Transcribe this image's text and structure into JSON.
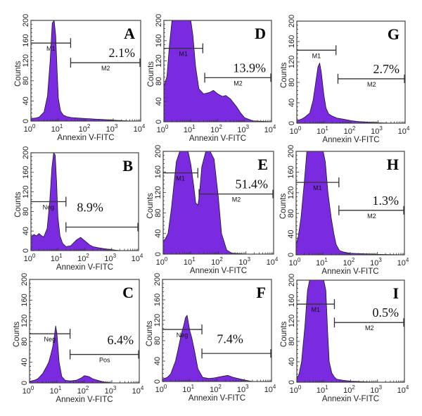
{
  "chart_data": {
    "type": "area",
    "description": "3x3 grid of flow cytometry Annexin V-FITC histograms",
    "fill_color": "#7a2be0",
    "outline_color": "#1a1a1a",
    "xscale": "log",
    "xlim": [
      1,
      10000
    ],
    "ylim": [
      0,
      200
    ],
    "xticks": [
      "10^0",
      "10^1",
      "10^2",
      "10^3",
      "10^4"
    ],
    "yticks": [
      "0",
      "40",
      "80",
      "120",
      "160",
      "200"
    ],
    "grid": false,
    "panels": [
      {
        "id": "A",
        "letter": "A",
        "percent": "2.1%",
        "xlabel": "Annexin V-FITC",
        "ylabel": "Counts",
        "markers": [
          {
            "label": "M1",
            "x_start": 1,
            "x_end": 28,
            "y": 155
          },
          {
            "label": "M2",
            "x_start": 28,
            "x_end": 10000,
            "y": 116
          }
        ],
        "histogram": {
          "x": [
            1,
            1.5,
            2,
            3,
            4,
            5,
            6,
            7,
            8,
            9,
            10,
            12,
            15,
            20,
            30,
            50,
            100,
            200,
            500,
            1000,
            2000,
            5000,
            10000
          ],
          "y": [
            5,
            6,
            8,
            18,
            50,
            120,
            195,
            200,
            170,
            100,
            45,
            20,
            12,
            9,
            7,
            6,
            5,
            4,
            3,
            2,
            1,
            0,
            0
          ]
        }
      },
      {
        "id": "B",
        "letter": "B",
        "percent": "8.9%",
        "xlabel": "Annexin V-FITC",
        "ylabel": "Counts",
        "markers": [
          {
            "label": "Neg",
            "x_start": 1,
            "x_end": 20,
            "y": 100
          },
          {
            "label": "",
            "x_start": 20,
            "x_end": 10000,
            "y": 48
          }
        ],
        "histogram": {
          "x": [
            1,
            1.3,
            1.6,
            2,
            2.5,
            3,
            4,
            5,
            6,
            7,
            8,
            9,
            10,
            12,
            15,
            20,
            30,
            50,
            70,
            100,
            150,
            200,
            300,
            500,
            1000,
            2000,
            10000
          ],
          "y": [
            28,
            33,
            30,
            35,
            30,
            28,
            45,
            100,
            170,
            200,
            195,
            140,
            70,
            30,
            15,
            8,
            10,
            22,
            27,
            20,
            12,
            8,
            6,
            4,
            2,
            0,
            0
          ]
        }
      },
      {
        "id": "C",
        "letter": "C",
        "percent": "6.4%",
        "xlabel": "Annexin V-FITC",
        "ylabel": "Counts",
        "markers": [
          {
            "label": "Neg",
            "x_start": 1,
            "x_end": 30,
            "y": 95
          },
          {
            "label": "Pos",
            "x_start": 30,
            "x_end": 10000,
            "y": 55
          }
        ],
        "histogram": {
          "x": [
            1,
            1.5,
            2,
            3,
            4,
            5,
            6,
            7,
            8,
            9,
            10,
            12,
            15,
            20,
            30,
            50,
            80,
            100,
            150,
            200,
            300,
            500,
            1000,
            10000
          ],
          "y": [
            3,
            5,
            8,
            18,
            30,
            40,
            55,
            70,
            90,
            110,
            95,
            40,
            12,
            5,
            4,
            5,
            10,
            14,
            12,
            8,
            5,
            2,
            0,
            0
          ]
        }
      },
      {
        "id": "D",
        "letter": "D",
        "percent": "13.9%",
        "xlabel": "Annexin V-FITC",
        "ylabel": "Counts",
        "markers": [
          {
            "label": "M1",
            "x_start": 1,
            "x_end": 28,
            "y": 145
          },
          {
            "label": "M2",
            "x_start": 33,
            "x_end": 10000,
            "y": 87
          }
        ],
        "histogram": {
          "x": [
            1,
            1.3,
            1.6,
            2,
            3,
            5,
            8,
            10,
            12,
            15,
            20,
            30,
            50,
            70,
            100,
            150,
            200,
            300,
            500,
            700,
            1000,
            2000,
            10000
          ],
          "y": [
            70,
            90,
            150,
            200,
            200,
            200,
            200,
            200,
            170,
            110,
            65,
            55,
            58,
            62,
            55,
            50,
            52,
            45,
            30,
            18,
            8,
            2,
            0
          ]
        }
      },
      {
        "id": "E",
        "letter": "E",
        "percent": "51.4%",
        "xlabel": "Annexin V-FITC",
        "ylabel": "Counts",
        "markers": [
          {
            "label": "M1",
            "x_start": 1,
            "x_end": 18,
            "y": 158
          },
          {
            "label": "M2",
            "x_start": 20,
            "x_end": 10000,
            "y": 117
          }
        ],
        "histogram": {
          "x": [
            1,
            1.2,
            1.5,
            2,
            3,
            4,
            6,
            8,
            10,
            13,
            15,
            18,
            20,
            25,
            35,
            50,
            70,
            100,
            130,
            200,
            300,
            1000,
            10000
          ],
          "y": [
            25,
            30,
            40,
            90,
            180,
            200,
            200,
            200,
            175,
            130,
            100,
            95,
            110,
            170,
            200,
            200,
            185,
            110,
            40,
            8,
            2,
            0,
            0
          ]
        }
      },
      {
        "id": "F",
        "letter": "F",
        "percent": "7.4%",
        "xlabel": "Annexin V-FITC",
        "ylabel": "Counts",
        "markers": [
          {
            "label": "Neg",
            "x_start": 1,
            "x_end": 28,
            "y": 102
          },
          {
            "label": "",
            "x_start": 28,
            "x_end": 10000,
            "y": 55
          }
        ],
        "histogram": {
          "x": [
            1,
            1.5,
            2,
            3,
            4,
            5,
            6,
            7,
            8,
            10,
            12,
            15,
            20,
            30,
            50,
            80,
            150,
            250,
            400,
            700,
            1000,
            2000,
            10000
          ],
          "y": [
            5,
            8,
            15,
            40,
            70,
            95,
            110,
            125,
            130,
            100,
            85,
            60,
            25,
            8,
            6,
            7,
            10,
            12,
            8,
            5,
            3,
            0,
            0
          ]
        }
      },
      {
        "id": "G",
        "letter": "G",
        "percent": "2.7%",
        "xlabel": "Annexin V-FITC",
        "ylabel": "Counts",
        "markers": [
          {
            "label": "M1",
            "x_start": 1,
            "x_end": 28,
            "y": 143
          },
          {
            "label": "M2",
            "x_start": 33,
            "x_end": 10000,
            "y": 87
          }
        ],
        "histogram": {
          "x": [
            1,
            1.5,
            2,
            3,
            4,
            5,
            6,
            7,
            8,
            10,
            12,
            15,
            20,
            30,
            50,
            100,
            200,
            500,
            1000,
            3000,
            10000
          ],
          "y": [
            5,
            8,
            12,
            20,
            45,
            80,
            110,
            118,
            100,
            55,
            30,
            18,
            14,
            10,
            8,
            5,
            3,
            2,
            1,
            0,
            0
          ]
        }
      },
      {
        "id": "H",
        "letter": "H",
        "percent": "1.3%",
        "xlabel": "Annexin V-FITC",
        "ylabel": "Counts",
        "markers": [
          {
            "label": "M1",
            "x_start": 1,
            "x_end": 38,
            "y": 140
          },
          {
            "label": "M2",
            "x_start": 38,
            "x_end": 10000,
            "y": 86
          }
        ],
        "histogram": {
          "x": [
            1,
            1.2,
            1.5,
            2,
            2.5,
            3,
            5,
            8,
            10,
            12,
            15,
            20,
            25,
            30,
            40,
            60,
            100,
            300,
            1000,
            10000
          ],
          "y": [
            20,
            35,
            70,
            140,
            200,
            200,
            200,
            200,
            200,
            180,
            120,
            70,
            40,
            20,
            8,
            5,
            3,
            2,
            1,
            0
          ]
        }
      },
      {
        "id": "I",
        "letter": "I",
        "percent": "0.5%",
        "xlabel": "Annexin V-FITC",
        "ylabel": "Counts",
        "markers": [
          {
            "label": "M1",
            "x_start": 1,
            "x_end": 25,
            "y": 153
          },
          {
            "label": "M2",
            "x_start": 25,
            "x_end": 10000,
            "y": 117
          }
        ],
        "histogram": {
          "x": [
            1,
            1.2,
            1.5,
            2,
            2.5,
            3,
            5,
            8,
            10,
            12,
            14,
            16,
            20,
            25,
            30,
            50,
            100,
            300,
            1000,
            10000
          ],
          "y": [
            8,
            15,
            40,
            110,
            180,
            200,
            200,
            200,
            200,
            180,
            100,
            40,
            18,
            10,
            6,
            4,
            2,
            1,
            0,
            0
          ]
        }
      }
    ]
  }
}
